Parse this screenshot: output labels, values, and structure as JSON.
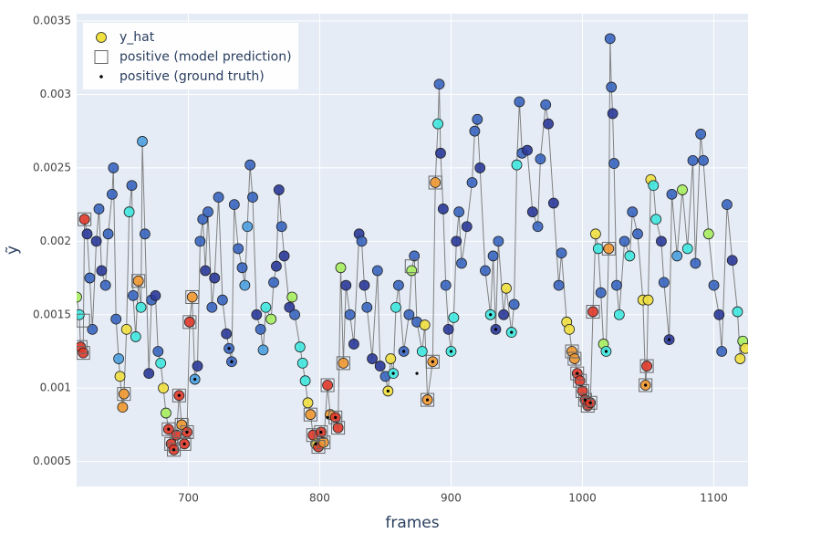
{
  "chart_data": {
    "type": "scatter",
    "x_label": "frames",
    "y_label": "ỹ",
    "xlim": [
      615,
      1126
    ],
    "ylim": [
      0.00033,
      0.00355
    ],
    "xticks": [
      700,
      800,
      900,
      1000,
      1100
    ],
    "yticks": [
      0.0005,
      0.001,
      0.0015,
      0.002,
      0.0025,
      0.003,
      0.0035
    ],
    "grid": true,
    "legend": "top-left",
    "background": "#e5ecf6",
    "series": [
      {
        "name": "y_hat",
        "marker": "circle",
        "color": "#f0e040",
        "line_color": "#808080",
        "x": [
          615,
          617,
          618,
          620,
          621,
          623,
          625,
          627,
          630,
          632,
          634,
          637,
          639,
          642,
          643,
          645,
          647,
          648,
          650,
          651,
          653,
          655,
          657,
          658,
          660,
          662,
          664,
          665,
          667,
          670,
          672,
          675,
          677,
          679,
          681,
          683,
          685,
          687,
          689,
          691,
          693,
          695,
          697,
          699,
          701,
          703,
          705,
          707,
          709,
          711,
          713,
          715,
          718,
          720,
          723,
          726,
          729,
          731,
          733,
          735,
          738,
          741,
          743,
          745,
          747,
          749,
          752,
          755,
          757,
          759,
          763,
          765,
          767,
          769,
          771,
          773,
          777,
          779,
          781,
          785,
          787,
          789,
          791,
          793,
          795,
          797,
          799,
          801,
          803,
          806,
          808,
          812,
          814,
          816,
          818,
          820,
          823,
          826,
          830,
          832,
          834,
          836,
          840,
          844,
          846,
          850,
          852,
          854,
          856,
          858,
          860,
          864,
          868,
          870,
          872,
          874,
          878,
          880,
          882,
          886,
          888,
          890,
          891,
          892,
          894,
          896,
          898,
          900,
          902,
          904,
          906,
          908,
          912,
          916,
          918,
          920,
          922,
          926,
          930,
          932,
          934,
          936,
          940,
          942,
          946,
          948,
          950,
          952,
          954,
          958,
          962,
          966,
          968,
          972,
          974,
          978,
          982,
          984,
          988,
          990,
          992,
          994,
          996,
          998,
          1000,
          1002,
          1004,
          1006,
          1008,
          1010,
          1012,
          1014,
          1016,
          1018,
          1020,
          1021,
          1022,
          1023,
          1024,
          1026,
          1028,
          1032,
          1036,
          1038,
          1042,
          1046,
          1048,
          1049,
          1050,
          1052,
          1054,
          1056,
          1060,
          1062,
          1066,
          1068,
          1072,
          1076,
          1080,
          1084,
          1086,
          1090,
          1092,
          1096,
          1100,
          1104,
          1106,
          1110,
          1114,
          1118,
          1120,
          1122,
          1124
        ],
        "values": [
          0.00162,
          0.0015,
          0.00128,
          0.00124,
          0.00215,
          0.00205,
          0.00175,
          0.0014,
          0.002,
          0.00222,
          0.0018,
          0.0017,
          0.00205,
          0.00232,
          0.0025,
          0.00147,
          0.0012,
          0.00108,
          0.00087,
          0.00096,
          0.0014,
          0.0022,
          0.00238,
          0.00163,
          0.00135,
          0.00173,
          0.00155,
          0.00268,
          0.00205,
          0.0011,
          0.0016,
          0.00163,
          0.00125,
          0.00117,
          0.001,
          0.00083,
          0.00072,
          0.00062,
          0.00058,
          0.00068,
          0.00095,
          0.00075,
          0.00062,
          0.0007,
          0.00145,
          0.00162,
          0.00106,
          0.00115,
          0.002,
          0.00215,
          0.0018,
          0.0022,
          0.00155,
          0.00175,
          0.0023,
          0.0016,
          0.00137,
          0.00127,
          0.00118,
          0.00225,
          0.00195,
          0.00182,
          0.0017,
          0.0021,
          0.00252,
          0.0023,
          0.0015,
          0.0014,
          0.00126,
          0.00155,
          0.00147,
          0.00172,
          0.00183,
          0.00235,
          0.0021,
          0.0019,
          0.00155,
          0.00162,
          0.0015,
          0.00128,
          0.00117,
          0.00105,
          0.0009,
          0.00082,
          0.00068,
          0.00062,
          0.0006,
          0.0007,
          0.00063,
          0.00102,
          0.00082,
          0.0008,
          0.00073,
          0.00182,
          0.00117,
          0.0017,
          0.0015,
          0.0013,
          0.00205,
          0.002,
          0.0017,
          0.00155,
          0.0012,
          0.0018,
          0.00115,
          0.00108,
          0.00098,
          0.0012,
          0.0011,
          0.00155,
          0.0017,
          0.00125,
          0.0015,
          0.0018,
          0.0019,
          0.00145,
          0.00125,
          0.00143,
          0.00092,
          0.00118,
          0.0024,
          0.0028,
          0.00307,
          0.0026,
          0.00222,
          0.0017,
          0.0014,
          0.00125,
          0.00148,
          0.002,
          0.0022,
          0.00185,
          0.0021,
          0.0024,
          0.00275,
          0.00283,
          0.0025,
          0.0018,
          0.0015,
          0.0019,
          0.0014,
          0.002,
          0.0015,
          0.00168,
          0.00138,
          0.00157,
          0.00252,
          0.00295,
          0.0026,
          0.00262,
          0.0022,
          0.0021,
          0.00256,
          0.00293,
          0.0028,
          0.00226,
          0.0017,
          0.00192,
          0.00145,
          0.0014,
          0.00125,
          0.0012,
          0.0011,
          0.00105,
          0.00098,
          0.00092,
          0.00088,
          0.0009,
          0.00152,
          0.00205,
          0.00195,
          0.00165,
          0.0013,
          0.00125,
          0.00195,
          0.00338,
          0.00305,
          0.00287,
          0.00253,
          0.0017,
          0.0015,
          0.002,
          0.0019,
          0.0022,
          0.00205,
          0.0016,
          0.00102,
          0.00115,
          0.0016,
          0.00242,
          0.00238,
          0.00215,
          0.002,
          0.00172,
          0.00133,
          0.00232,
          0.0019,
          0.00235,
          0.00195,
          0.00255,
          0.00185,
          0.00273,
          0.00255,
          0.00205,
          0.0017,
          0.0015,
          0.00125,
          0.00225,
          0.00187,
          0.00152,
          0.0012,
          0.00132,
          0.00127
        ],
        "colors": [
          "#a8f060",
          "#40e8e0",
          "#e03a2a",
          "#e03a2a",
          "#e03a2a",
          "#2b3a9a",
          "#3a66c0",
          "#3a66c0",
          "#2b3a9a",
          "#3a66c0",
          "#2b3a9a",
          "#3a66c0",
          "#3a66c0",
          "#3a66c0",
          "#3a66c0",
          "#3a66c0",
          "#4aa0e0",
          "#f0e040",
          "#f09830",
          "#f09830",
          "#f0e040",
          "#40e8e0",
          "#3a66c0",
          "#3a66c0",
          "#40e8e0",
          "#f09830",
          "#40e8e0",
          "#4aa0e0",
          "#3a66c0",
          "#2b3a9a",
          "#3a66c0",
          "#2b3a9a",
          "#3a66c0",
          "#40e8e0",
          "#f0e040",
          "#a8f060",
          "#e03a2a",
          "#e03a2a",
          "#e03a2a",
          "#e03a2a",
          "#e03a2a",
          "#f09830",
          "#e03a2a",
          "#e03a2a",
          "#e03a2a",
          "#f09830",
          "#4aa0e0",
          "#2b3a9a",
          "#3a66c0",
          "#3a66c0",
          "#2b3a9a",
          "#3a66c0",
          "#3a66c0",
          "#2b3a9a",
          "#3a66c0",
          "#3a66c0",
          "#2b3a9a",
          "#3a66c0",
          "#3a66c0",
          "#3a66c0",
          "#3a66c0",
          "#3a66c0",
          "#4aa0e0",
          "#4aa0e0",
          "#3a66c0",
          "#3a66c0",
          "#2b3a9a",
          "#3a66c0",
          "#4aa0e0",
          "#40e8e0",
          "#a8f060",
          "#3a66c0",
          "#2b3a9a",
          "#2b3a9a",
          "#3a66c0",
          "#2b3a9a",
          "#2b3a9a",
          "#a8f060",
          "#3a66c0",
          "#40e8e0",
          "#40e8e0",
          "#40e8e0",
          "#f0e040",
          "#f09830",
          "#e03a2a",
          "#f0e040",
          "#e03a2a",
          "#e03a2a",
          "#f09830",
          "#e03a2a",
          "#f09830",
          "#e03a2a",
          "#e03a2a",
          "#a8f060",
          "#f09830",
          "#2b3a9a",
          "#3a66c0",
          "#2b3a9a",
          "#2b3a9a",
          "#3a66c0",
          "#2b3a9a",
          "#3a66c0",
          "#2b3a9a",
          "#3a66c0",
          "#2b3a9a",
          "#3a66c0",
          "#f0e040",
          "#f0e040",
          "#40e8e0",
          "#40e8e0",
          "#3a66c0",
          "#3a66c0",
          "#3a66c0",
          "#a8f060",
          "#3a66c0",
          "#3a66c0",
          "#40e8e0",
          "#f0e040",
          "#f09830",
          "#f09830",
          "#f09830",
          "#40e8e0",
          "#3a66c0",
          "#2b3a9a",
          "#2b3a9a",
          "#3a66c0",
          "#2b3a9a",
          "#40e8e0",
          "#40e8e0",
          "#2b3a9a",
          "#3a66c0",
          "#3a66c0",
          "#2b3a9a",
          "#3a66c0",
          "#3a66c0",
          "#3a66c0",
          "#2b3a9a",
          "#3a66c0",
          "#40e8e0",
          "#3a66c0",
          "#2b3a9a",
          "#3a66c0",
          "#2b3a9a",
          "#f0e040",
          "#40e8e0",
          "#3a66c0",
          "#40e8e0",
          "#3a66c0",
          "#3a66c0",
          "#2b3a9a",
          "#2b3a9a",
          "#3a66c0",
          "#3a66c0",
          "#3a66c0",
          "#2b3a9a",
          "#2b3a9a",
          "#3a66c0",
          "#3a66c0",
          "#f0e040",
          "#f0e040",
          "#f09830",
          "#f09830",
          "#e03a2a",
          "#e03a2a",
          "#e03a2a",
          "#e03a2a",
          "#e03a2a",
          "#e03a2a",
          "#e03a2a",
          "#f0e040",
          "#40e8e0",
          "#3a66c0",
          "#a8f060",
          "#40e8e0",
          "#f09830",
          "#3a66c0",
          "#3a66c0",
          "#2b3a9a",
          "#3a66c0",
          "#3a66c0",
          "#40e8e0",
          "#3a66c0",
          "#40e8e0",
          "#3a66c0",
          "#3a66c0",
          "#f0e040",
          "#f09830",
          "#e03a2a",
          "#f0e040",
          "#f0e040",
          "#40e8e0",
          "#40e8e0",
          "#2b3a9a",
          "#3a66c0",
          "#2b3a9a",
          "#3a66c0",
          "#4aa0e0",
          "#a8f060",
          "#40e8e0",
          "#3a66c0",
          "#3a66c0",
          "#3a66c0",
          "#3a66c0",
          "#a8f060",
          "#3a66c0",
          "#2b3a9a",
          "#3a66c0",
          "#3a66c0",
          "#2b3a9a",
          "#40e8e0",
          "#f0e040",
          "#a8f060",
          "#f0e040"
        ]
      },
      {
        "name": "positive (model prediction)",
        "marker": "square",
        "color": "#666666",
        "x": [
          621,
          620,
          618,
          620,
          651,
          662,
          685,
          687,
          689,
          693,
          695,
          697,
          699,
          701,
          703,
          793,
          795,
          799,
          801,
          803,
          806,
          812,
          814,
          818,
          870,
          882,
          886,
          888,
          992,
          994,
          996,
          998,
          1000,
          1002,
          1004,
          1006,
          1008,
          1020,
          1048,
          1049
        ],
        "values": [
          0.00215,
          0.00146,
          0.00128,
          0.00124,
          0.00096,
          0.00173,
          0.00072,
          0.00062,
          0.00058,
          0.00095,
          0.00075,
          0.00062,
          0.0007,
          0.00145,
          0.00162,
          0.00082,
          0.00068,
          0.0006,
          0.0007,
          0.00063,
          0.00102,
          0.0008,
          0.00073,
          0.00117,
          0.00183,
          0.00092,
          0.00118,
          0.0024,
          0.00125,
          0.0012,
          0.0011,
          0.00105,
          0.00098,
          0.00092,
          0.00088,
          0.0009,
          0.00152,
          0.00195,
          0.00102,
          0.00115
        ]
      },
      {
        "name": "positive (ground truth)",
        "marker": "dot",
        "color": "#000000",
        "x": [
          685,
          689,
          693,
          697,
          699,
          705,
          731,
          733,
          797,
          801,
          806,
          812,
          852,
          856,
          864,
          874,
          882,
          886,
          900,
          930,
          934,
          946,
          996,
          1002,
          1006,
          1018,
          1048,
          1066
        ],
        "values": [
          0.00072,
          0.00058,
          0.00095,
          0.00062,
          0.0007,
          0.00106,
          0.00127,
          0.00118,
          0.00062,
          0.0007,
          0.0008,
          0.0008,
          0.00098,
          0.0011,
          0.00125,
          0.0011,
          0.00092,
          0.00118,
          0.00125,
          0.0015,
          0.0014,
          0.00138,
          0.0011,
          0.00092,
          0.0009,
          0.00125,
          0.00102,
          0.00133
        ]
      }
    ]
  }
}
